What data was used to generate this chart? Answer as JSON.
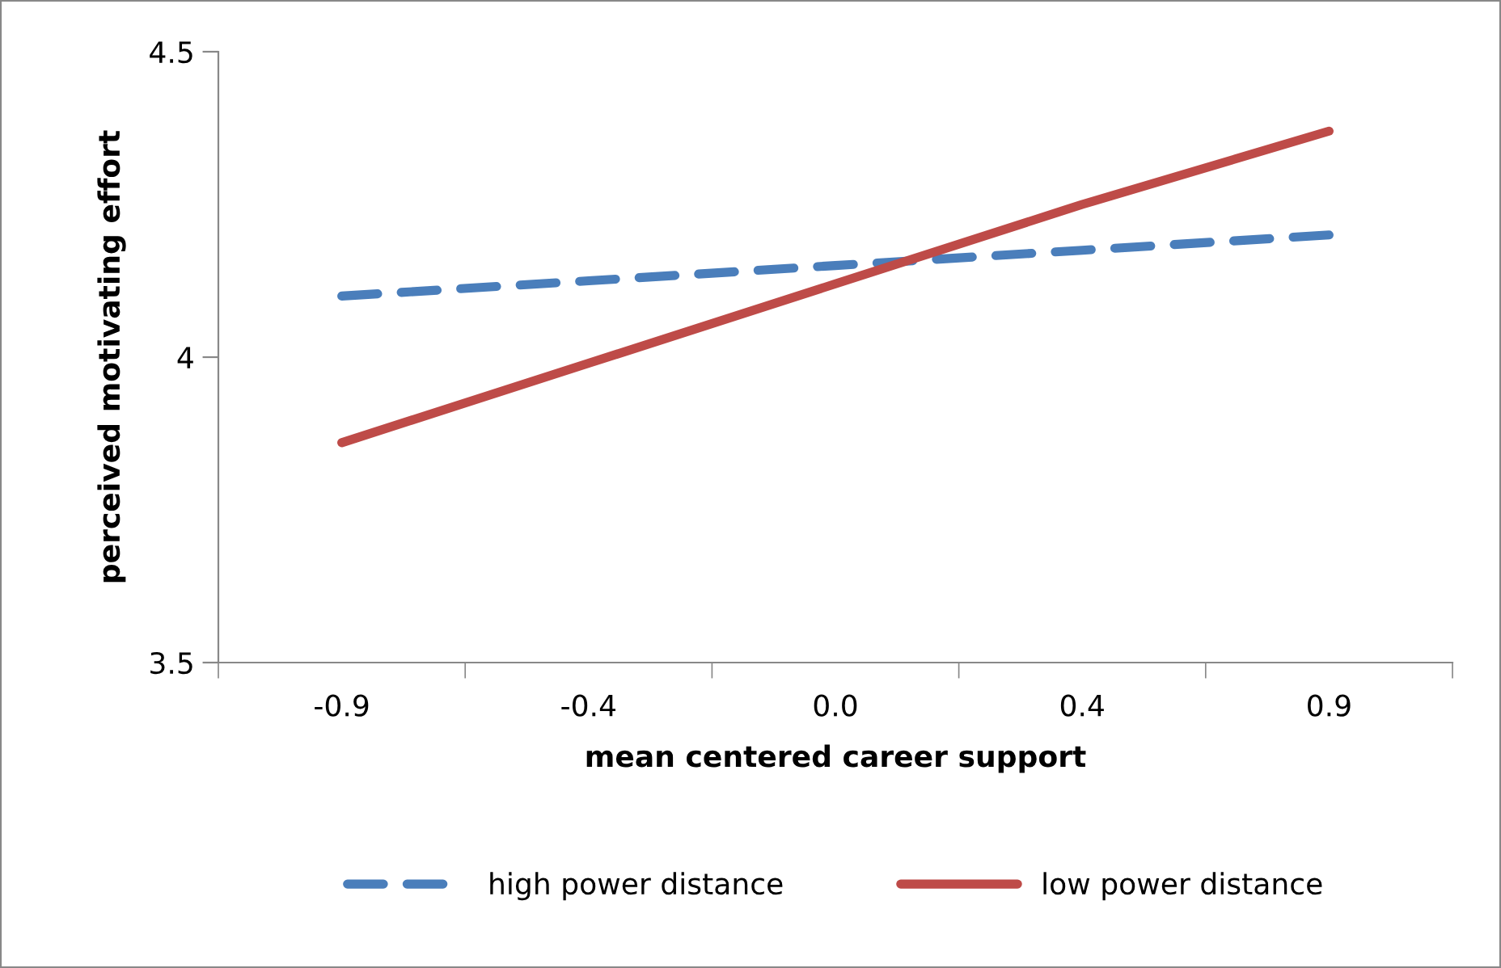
{
  "chart_data": {
    "type": "line",
    "xlabel": "mean centered career support",
    "ylabel": "perceived motivating effort",
    "categories": [
      "-0.9",
      "-0.4",
      "0.0",
      "0.4",
      "0.9"
    ],
    "series": [
      {
        "name": "high power distance",
        "color": "#4a7ebb",
        "line_style": "dashed",
        "values": [
          4.1,
          4.125,
          4.15,
          4.175,
          4.2
        ]
      },
      {
        "name": "low power distance",
        "color": "#be4b48",
        "line_style": "solid",
        "values": [
          3.86,
          3.99,
          4.12,
          4.25,
          4.37
        ]
      }
    ],
    "ylim": [
      3.5,
      4.5
    ],
    "yticks": [
      3.5,
      4,
      4.5
    ],
    "grid": false,
    "legend": "bottom",
    "marker": "none"
  }
}
